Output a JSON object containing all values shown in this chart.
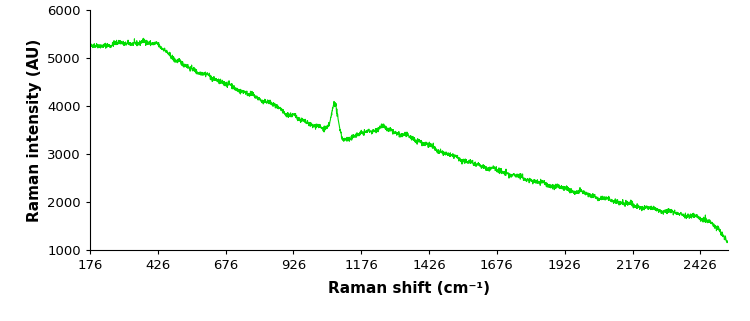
{
  "title": "",
  "xlabel": "Raman shift (cm⁻¹)",
  "ylabel": "Raman intensity (AU)",
  "line_color": "#00dd00",
  "line_width": 0.8,
  "xlim": [
    176,
    2526
  ],
  "ylim": [
    1000,
    6000
  ],
  "xticks": [
    176,
    426,
    676,
    926,
    1176,
    1426,
    1676,
    1926,
    2176,
    2426
  ],
  "yticks": [
    1000,
    2000,
    3000,
    4000,
    5000,
    6000
  ],
  "background_color": "#ffffff",
  "figsize": [
    7.5,
    3.21
  ],
  "dpi": 100,
  "keypoints": [
    [
      176,
      5220
    ],
    [
      200,
      5240
    ],
    [
      230,
      5260
    ],
    [
      260,
      5280
    ],
    [
      300,
      5310
    ],
    [
      330,
      5300
    ],
    [
      360,
      5290
    ],
    [
      380,
      5340
    ],
    [
      400,
      5320
    ],
    [
      420,
      5290
    ],
    [
      440,
      5200
    ],
    [
      460,
      5100
    ],
    [
      490,
      4980
    ],
    [
      520,
      4850
    ],
    [
      560,
      4750
    ],
    [
      600,
      4650
    ],
    [
      640,
      4550
    ],
    [
      680,
      4450
    ],
    [
      720,
      4350
    ],
    [
      760,
      4250
    ],
    [
      800,
      4150
    ],
    [
      840,
      4050
    ],
    [
      870,
      3950
    ],
    [
      900,
      3840
    ],
    [
      920,
      3800
    ],
    [
      940,
      3750
    ],
    [
      960,
      3700
    ],
    [
      980,
      3650
    ],
    [
      1000,
      3590
    ],
    [
      1015,
      3560
    ],
    [
      1030,
      3530
    ],
    [
      1050,
      3550
    ],
    [
      1062,
      3700
    ],
    [
      1075,
      4060
    ],
    [
      1082,
      4030
    ],
    [
      1092,
      3650
    ],
    [
      1105,
      3310
    ],
    [
      1115,
      3280
    ],
    [
      1125,
      3310
    ],
    [
      1140,
      3350
    ],
    [
      1155,
      3390
    ],
    [
      1170,
      3410
    ],
    [
      1185,
      3440
    ],
    [
      1200,
      3460
    ],
    [
      1220,
      3500
    ],
    [
      1250,
      3560
    ],
    [
      1270,
      3520
    ],
    [
      1300,
      3450
    ],
    [
      1330,
      3390
    ],
    [
      1360,
      3340
    ],
    [
      1390,
      3270
    ],
    [
      1420,
      3200
    ],
    [
      1450,
      3100
    ],
    [
      1480,
      3020
    ],
    [
      1510,
      2960
    ],
    [
      1540,
      2900
    ],
    [
      1570,
      2840
    ],
    [
      1600,
      2790
    ],
    [
      1640,
      2720
    ],
    [
      1680,
      2660
    ],
    [
      1720,
      2590
    ],
    [
      1760,
      2530
    ],
    [
      1800,
      2460
    ],
    [
      1840,
      2400
    ],
    [
      1880,
      2340
    ],
    [
      1920,
      2290
    ],
    [
      1960,
      2240
    ],
    [
      2000,
      2180
    ],
    [
      2040,
      2120
    ],
    [
      2080,
      2060
    ],
    [
      2120,
      2010
    ],
    [
      2160,
      1960
    ],
    [
      2200,
      1910
    ],
    [
      2240,
      1870
    ],
    [
      2280,
      1830
    ],
    [
      2310,
      1800
    ],
    [
      2340,
      1770
    ],
    [
      2360,
      1750
    ],
    [
      2380,
      1730
    ],
    [
      2400,
      1700
    ],
    [
      2420,
      1680
    ],
    [
      2440,
      1650
    ],
    [
      2455,
      1620
    ],
    [
      2468,
      1570
    ],
    [
      2480,
      1500
    ],
    [
      2490,
      1430
    ],
    [
      2500,
      1370
    ],
    [
      2510,
      1300
    ],
    [
      2518,
      1250
    ],
    [
      2526,
      1200
    ]
  ]
}
